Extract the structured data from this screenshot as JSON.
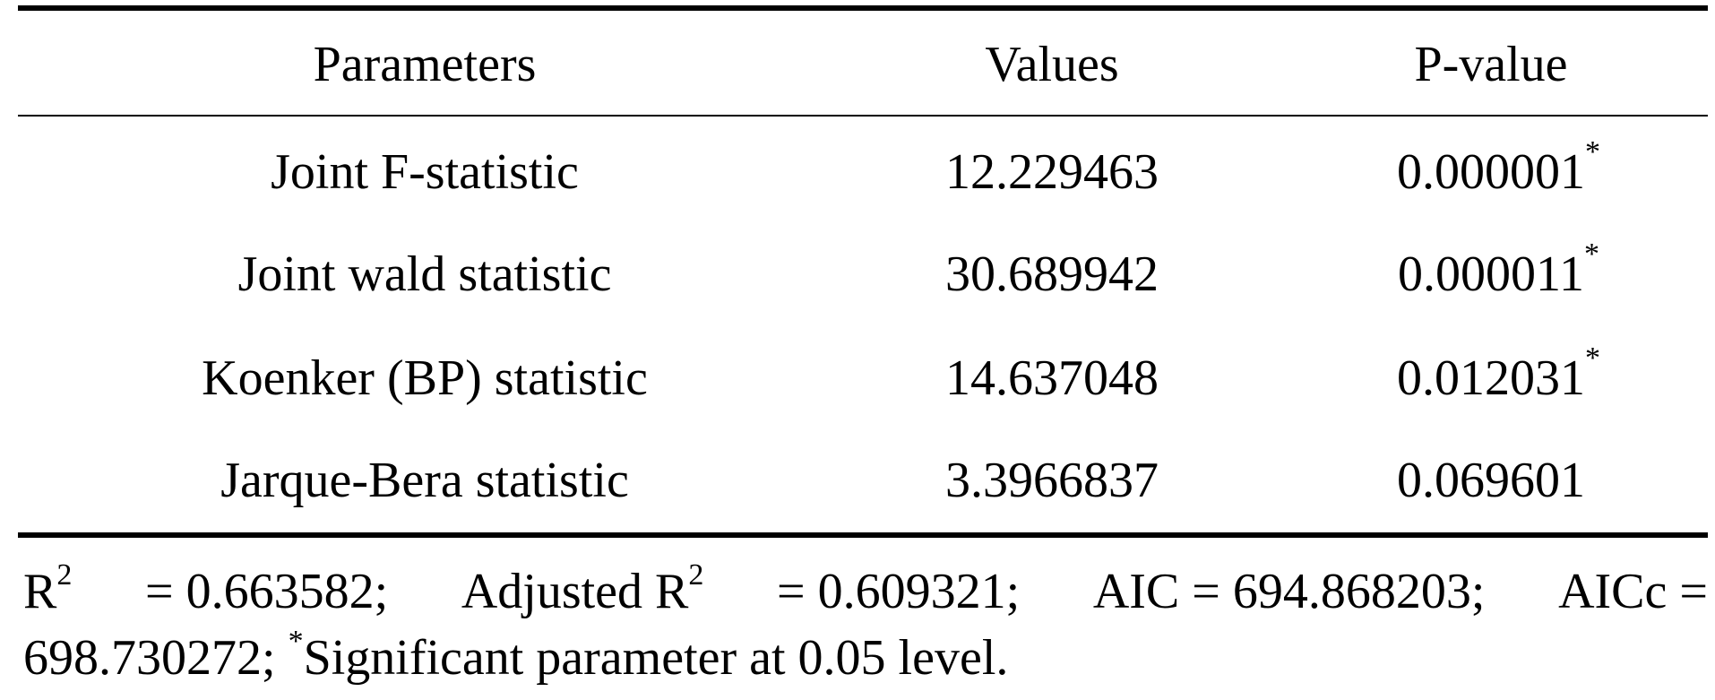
{
  "table": {
    "headers": [
      "Parameters",
      "Values",
      "P-value"
    ],
    "rows": [
      {
        "parameter": "Joint F-statistic",
        "value": "12.229463",
        "p_value": "0.000001",
        "significance_mark": "*"
      },
      {
        "parameter": "Joint wald statistic",
        "value": "30.689942",
        "p_value": "0.000011",
        "significance_mark": "*"
      },
      {
        "parameter": "Koenker (BP) statistic",
        "value": "14.637048",
        "p_value": "0.012031",
        "significance_mark": "*"
      },
      {
        "parameter": "Jarque-Bera statistic",
        "value": "3.3966837",
        "p_value": "0.069601",
        "significance_mark": ""
      }
    ]
  },
  "footnote": {
    "r2_label": "R",
    "r2_sup": "2",
    "r2_value": "= 0.663582;",
    "adj_label": "Adjusted R",
    "adj_sup": "2",
    "adj_value": "= 0.609321;",
    "aic": "AIC = 694.868203;",
    "aicc_label": "AICc =",
    "aicc_value": "698.730272;",
    "sig_mark": "*",
    "sig_text": "Significant parameter at 0.05 level."
  }
}
